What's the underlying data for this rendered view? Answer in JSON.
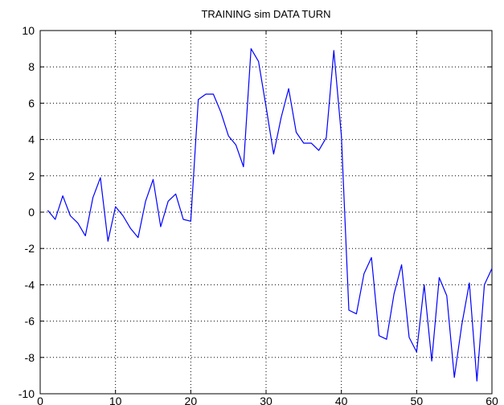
{
  "chart_data": {
    "type": "line",
    "title": "TRAINING sim DATA TURN",
    "xlabel": "",
    "ylabel": "",
    "xlim": [
      0,
      60
    ],
    "ylim": [
      -10,
      10
    ],
    "xticks": [
      0,
      10,
      20,
      30,
      40,
      50,
      60
    ],
    "yticks": [
      10,
      8,
      6,
      4,
      2,
      0,
      -2,
      -4,
      -6,
      -8,
      -10
    ],
    "grid": true,
    "series": [
      {
        "color": "#0000ff",
        "x": [
          1,
          2,
          3,
          4,
          5,
          6,
          7,
          8,
          9,
          10,
          11,
          12,
          13,
          14,
          15,
          16,
          17,
          18,
          19,
          20,
          21,
          22,
          23,
          24,
          25,
          26,
          27,
          28,
          29,
          30,
          31,
          32,
          33,
          34,
          35,
          36,
          37,
          38,
          39,
          40,
          41,
          42,
          43,
          44,
          45,
          46,
          47,
          48,
          49,
          50,
          51,
          52,
          53,
          54,
          55,
          56,
          57,
          58,
          59,
          60
        ],
        "y": [
          0.1,
          -0.4,
          0.9,
          -0.2,
          -0.6,
          -1.3,
          0.8,
          1.9,
          -1.6,
          0.3,
          -0.2,
          -0.9,
          -1.4,
          0.6,
          1.8,
          -0.8,
          0.6,
          1.0,
          -0.4,
          -0.5,
          6.2,
          6.5,
          6.5,
          5.5,
          4.2,
          3.7,
          2.5,
          9.0,
          8.3,
          5.8,
          3.2,
          5.2,
          6.8,
          4.4,
          3.8,
          3.8,
          3.4,
          4.1,
          8.9,
          4.2,
          -5.4,
          -5.6,
          -3.4,
          -2.5,
          -6.8,
          -7.0,
          -4.5,
          -2.9,
          -6.9,
          -7.7,
          -4.0,
          -8.2,
          -3.6,
          -4.6,
          -9.1,
          -6.2,
          -3.9,
          -9.3,
          -4.0,
          -3.1
        ]
      }
    ]
  }
}
